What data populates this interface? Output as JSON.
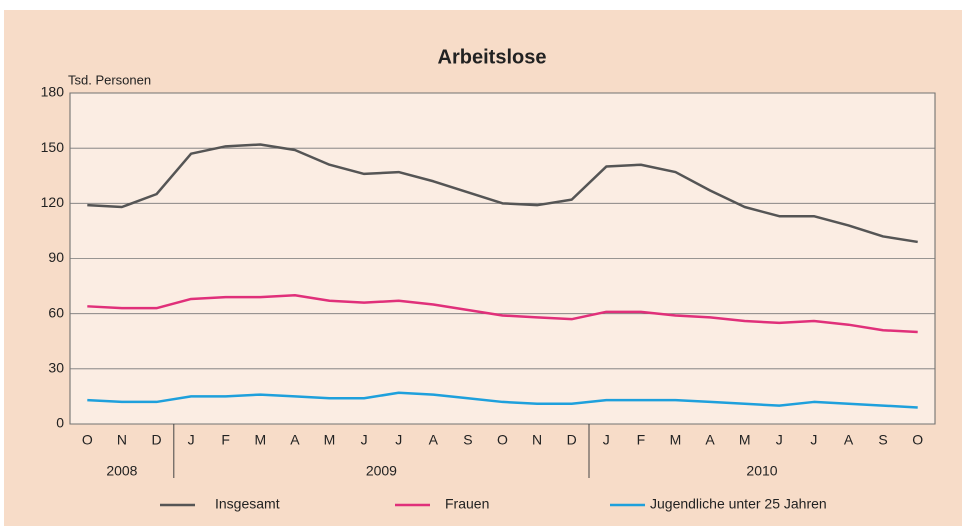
{
  "chart_data": {
    "type": "line",
    "title": "Arbeitslose",
    "y_label": "Tsd. Personen",
    "categories": [
      "O",
      "N",
      "D",
      "J",
      "F",
      "M",
      "A",
      "M",
      "J",
      "J",
      "A",
      "S",
      "O",
      "N",
      "D",
      "J",
      "F",
      "M",
      "A",
      "M",
      "J",
      "J",
      "A",
      "S",
      "O"
    ],
    "years": [
      "2008",
      "2009",
      "2010"
    ],
    "series": [
      {
        "name": "Insgesamt",
        "color": "#555555",
        "values": [
          119,
          118,
          125,
          147,
          151,
          152,
          149,
          141,
          136,
          137,
          132,
          126,
          120,
          119,
          122,
          140,
          141,
          137,
          127,
          118,
          113,
          113,
          108,
          102,
          99
        ]
      },
      {
        "name": "Frauen",
        "color": "#e0307a",
        "values": [
          64,
          63,
          63,
          68,
          69,
          69,
          70,
          67,
          66,
          67,
          65,
          62,
          59,
          58,
          57,
          61,
          61,
          59,
          58,
          56,
          55,
          56,
          54,
          51,
          50
        ]
      },
      {
        "name": "Jugendliche unter 25 Jahren",
        "color": "#1ea0dc",
        "values": [
          13,
          12,
          12,
          15,
          15,
          16,
          15,
          14,
          14,
          17,
          16,
          14,
          12,
          11,
          11,
          13,
          13,
          13,
          12,
          11,
          10,
          12,
          11,
          10,
          9
        ]
      }
    ],
    "ylim": [
      0,
      180
    ],
    "yticks": [
      0,
      30,
      60,
      90,
      120,
      150,
      180
    ],
    "grid": true
  }
}
